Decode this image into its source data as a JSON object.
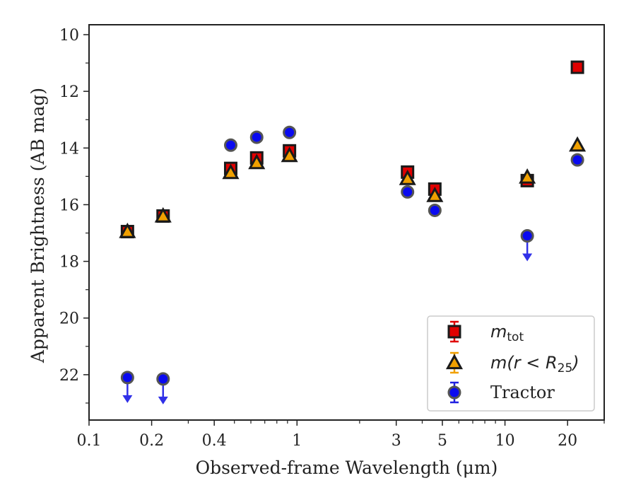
{
  "chart_data": {
    "type": "scatter",
    "title": "",
    "xlabel": "Observed-frame Wavelength (μm)",
    "ylabel": "Apparent Brightness (AB mag)",
    "xscale": "log",
    "xlim": [
      0.1,
      30
    ],
    "ylim": [
      23.6,
      9.65
    ],
    "y_inverted": true,
    "xticks": [
      {
        "value": 0.1,
        "label": "0.1"
      },
      {
        "value": 0.2,
        "label": "0.2"
      },
      {
        "value": 0.4,
        "label": "0.4"
      },
      {
        "value": 1,
        "label": "1"
      },
      {
        "value": 3,
        "label": "3"
      },
      {
        "value": 5,
        "label": "5"
      },
      {
        "value": 10,
        "label": "10"
      },
      {
        "value": 20,
        "label": "20"
      }
    ],
    "yticks": [
      {
        "value": 10,
        "label": "10"
      },
      {
        "value": 12,
        "label": "12"
      },
      {
        "value": 14,
        "label": "14"
      },
      {
        "value": 16,
        "label": "16"
      },
      {
        "value": 18,
        "label": "18"
      },
      {
        "value": 20,
        "label": "20"
      },
      {
        "value": 22,
        "label": "22"
      }
    ],
    "legend_position": "lower-right",
    "series": [
      {
        "name": "m_tot",
        "legend_base": "m",
        "legend_sub": "tot",
        "marker": "square",
        "color": "#e00000",
        "points": [
          {
            "x": 0.153,
            "y": 16.95
          },
          {
            "x": 0.227,
            "y": 16.4
          },
          {
            "x": 0.48,
            "y": 14.72
          },
          {
            "x": 0.64,
            "y": 14.35
          },
          {
            "x": 0.92,
            "y": 14.1
          },
          {
            "x": 3.4,
            "y": 14.85
          },
          {
            "x": 4.6,
            "y": 15.45
          },
          {
            "x": 12.8,
            "y": 15.15
          },
          {
            "x": 22.3,
            "y": 11.15
          }
        ]
      },
      {
        "name": "m(r < R25)",
        "legend_text": "m(r < R",
        "legend_sub": "25",
        "legend_close": ")",
        "marker": "triangle",
        "color": "#f0a000",
        "points": [
          {
            "x": 0.153,
            "y": 16.95
          },
          {
            "x": 0.227,
            "y": 16.4
          },
          {
            "x": 0.48,
            "y": 14.87
          },
          {
            "x": 0.64,
            "y": 14.52
          },
          {
            "x": 0.92,
            "y": 14.27
          },
          {
            "x": 3.4,
            "y": 15.08
          },
          {
            "x": 4.6,
            "y": 15.68
          },
          {
            "x": 12.8,
            "y": 15.03
          },
          {
            "x": 22.3,
            "y": 13.9
          }
        ]
      },
      {
        "name": "Tractor",
        "marker": "circle",
        "color": "#0a0af0",
        "points": [
          {
            "x": 0.153,
            "y": 22.1,
            "upper_limit": true
          },
          {
            "x": 0.227,
            "y": 22.15,
            "upper_limit": true
          },
          {
            "x": 0.48,
            "y": 13.9
          },
          {
            "x": 0.64,
            "y": 13.62
          },
          {
            "x": 0.92,
            "y": 13.45
          },
          {
            "x": 3.4,
            "y": 15.55
          },
          {
            "x": 4.6,
            "y": 16.2
          },
          {
            "x": 12.8,
            "y": 17.1,
            "upper_limit": true
          },
          {
            "x": 22.3,
            "y": 14.42
          }
        ]
      }
    ]
  }
}
